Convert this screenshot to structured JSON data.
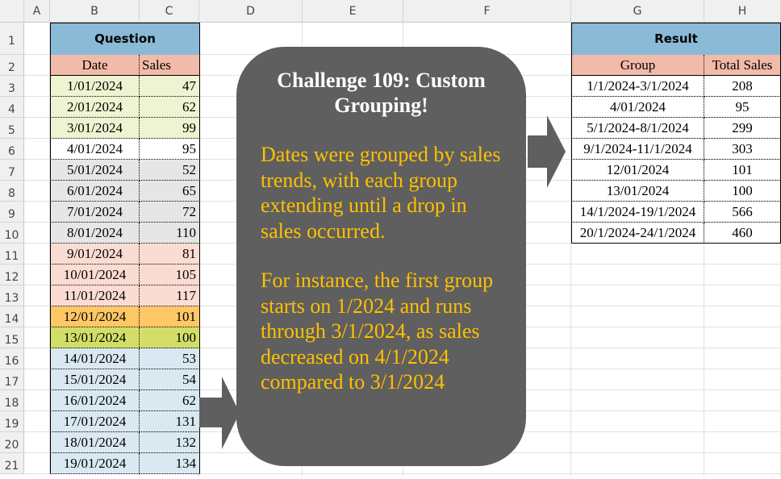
{
  "columns": [
    "A",
    "B",
    "C",
    "D",
    "E",
    "F",
    "G",
    "H"
  ],
  "rows": [
    "1",
    "2",
    "3",
    "4",
    "5",
    "6",
    "7",
    "8",
    "9",
    "10",
    "11",
    "12",
    "13",
    "14",
    "15",
    "16",
    "17",
    "18",
    "19",
    "20",
    "21"
  ],
  "question": {
    "title": "Question",
    "headers": [
      "Date",
      "Sales"
    ],
    "rows": [
      {
        "date": "1/01/2024",
        "sales": "47",
        "color": "#eef3d1"
      },
      {
        "date": "2/01/2024",
        "sales": "62",
        "color": "#eef3d1"
      },
      {
        "date": "3/01/2024",
        "sales": "99",
        "color": "#eef3d1"
      },
      {
        "date": "4/01/2024",
        "sales": "95",
        "color": "#ffffff"
      },
      {
        "date": "5/01/2024",
        "sales": "52",
        "color": "#e7e6e6"
      },
      {
        "date": "6/01/2024",
        "sales": "65",
        "color": "#e7e6e6"
      },
      {
        "date": "7/01/2024",
        "sales": "72",
        "color": "#e7e6e6"
      },
      {
        "date": "8/01/2024",
        "sales": "110",
        "color": "#e7e6e6"
      },
      {
        "date": "9/01/2024",
        "sales": "81",
        "color": "#fadcd2"
      },
      {
        "date": "10/01/2024",
        "sales": "105",
        "color": "#fadcd2"
      },
      {
        "date": "11/01/2024",
        "sales": "117",
        "color": "#fadcd2"
      },
      {
        "date": "12/01/2024",
        "sales": "101",
        "color": "#ffc766"
      },
      {
        "date": "13/01/2024",
        "sales": "100",
        "color": "#d2de68"
      },
      {
        "date": "14/01/2024",
        "sales": "53",
        "color": "#d9e8f1"
      },
      {
        "date": "15/01/2024",
        "sales": "54",
        "color": "#d9e8f1"
      },
      {
        "date": "16/01/2024",
        "sales": "62",
        "color": "#d9e8f1"
      },
      {
        "date": "17/01/2024",
        "sales": "131",
        "color": "#d9e8f1"
      },
      {
        "date": "18/01/2024",
        "sales": "132",
        "color": "#d9e8f1"
      },
      {
        "date": "19/01/2024",
        "sales": "134",
        "color": "#d9e8f1"
      }
    ]
  },
  "result": {
    "title": "Result",
    "headers": [
      "Group",
      "Total Sales"
    ],
    "rows": [
      {
        "group": "1/1/2024-3/1/2024",
        "total": "208"
      },
      {
        "group": "4/01/2024",
        "total": "95"
      },
      {
        "group": "5/1/2024-8/1/2024",
        "total": "299"
      },
      {
        "group": "9/1/2024-11/1/2024",
        "total": "303"
      },
      {
        "group": "12/01/2024",
        "total": "101"
      },
      {
        "group": "13/01/2024",
        "total": "100"
      },
      {
        "group": "14/1/2024-19/1/2024",
        "total": "566"
      },
      {
        "group": "20/1/2024-24/1/2024",
        "total": "460"
      }
    ]
  },
  "callout": {
    "title": "Challenge 109: Custom Grouping!",
    "paragraph1": "Dates were grouped by sales trends, with each group extending until a drop in sales occurred.",
    "paragraph2": "For instance, the first group starts on 1/2024 and runs through 3/1/2024, as sales decreased on 4/1/2024 compared to 3/1/2024",
    "bg_color": "#5f5f5f",
    "text_color": "#ffc000"
  }
}
